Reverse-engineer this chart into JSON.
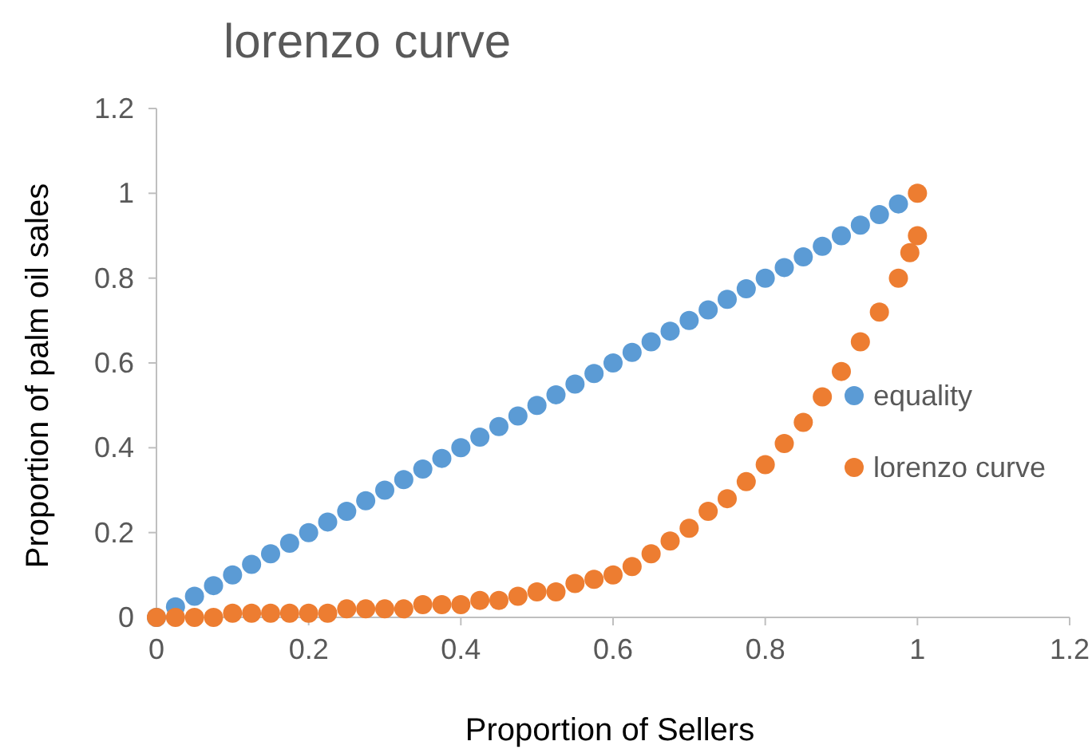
{
  "chart_data": {
    "type": "scatter",
    "title": "lorenzo curve",
    "xlabel": "Proportion of Sellers",
    "ylabel": "Proportion of palm oil sales",
    "xlim": [
      0,
      1.2
    ],
    "xticks": [
      0,
      0.2,
      0.4,
      0.6,
      0.8,
      1,
      1.2
    ],
    "ylim": [
      0,
      1.2
    ],
    "yticks": [
      0,
      0.2,
      0.4,
      0.6,
      0.8,
      1,
      1.2
    ],
    "grid": false,
    "legend": "right",
    "marker": "circle",
    "series": [
      {
        "name": "equality",
        "color": "#5b9bd5",
        "x": [
          0,
          0.025,
          0.05,
          0.075,
          0.1,
          0.125,
          0.15,
          0.175,
          0.2,
          0.225,
          0.25,
          0.275,
          0.3,
          0.325,
          0.35,
          0.375,
          0.4,
          0.425,
          0.45,
          0.475,
          0.5,
          0.525,
          0.55,
          0.575,
          0.6,
          0.625,
          0.65,
          0.675,
          0.7,
          0.725,
          0.75,
          0.775,
          0.8,
          0.825,
          0.85,
          0.875,
          0.9,
          0.925,
          0.95,
          0.975
        ],
        "values": [
          0,
          0.025,
          0.05,
          0.075,
          0.1,
          0.125,
          0.15,
          0.175,
          0.2,
          0.225,
          0.25,
          0.275,
          0.3,
          0.325,
          0.35,
          0.375,
          0.4,
          0.425,
          0.45,
          0.475,
          0.5,
          0.525,
          0.55,
          0.575,
          0.6,
          0.625,
          0.65,
          0.675,
          0.7,
          0.725,
          0.75,
          0.775,
          0.8,
          0.825,
          0.85,
          0.875,
          0.9,
          0.925,
          0.95,
          0.975
        ]
      },
      {
        "name": "lorenzo curve",
        "color": "#ed7d31",
        "x": [
          0,
          0.025,
          0.05,
          0.075,
          0.1,
          0.125,
          0.15,
          0.175,
          0.2,
          0.225,
          0.25,
          0.275,
          0.3,
          0.325,
          0.35,
          0.375,
          0.4,
          0.425,
          0.45,
          0.475,
          0.5,
          0.525,
          0.55,
          0.575,
          0.6,
          0.625,
          0.65,
          0.675,
          0.7,
          0.725,
          0.75,
          0.775,
          0.8,
          0.825,
          0.85,
          0.875,
          0.9,
          0.925,
          0.95,
          0.975,
          0.99,
          1,
          1
        ],
        "values": [
          0,
          0,
          0,
          0,
          0.01,
          0.01,
          0.01,
          0.01,
          0.01,
          0.01,
          0.02,
          0.02,
          0.02,
          0.02,
          0.03,
          0.03,
          0.03,
          0.04,
          0.04,
          0.05,
          0.06,
          0.06,
          0.08,
          0.09,
          0.1,
          0.12,
          0.15,
          0.18,
          0.21,
          0.25,
          0.28,
          0.32,
          0.36,
          0.41,
          0.46,
          0.52,
          0.58,
          0.65,
          0.72,
          0.8,
          0.86,
          0.9,
          1
        ]
      }
    ]
  }
}
